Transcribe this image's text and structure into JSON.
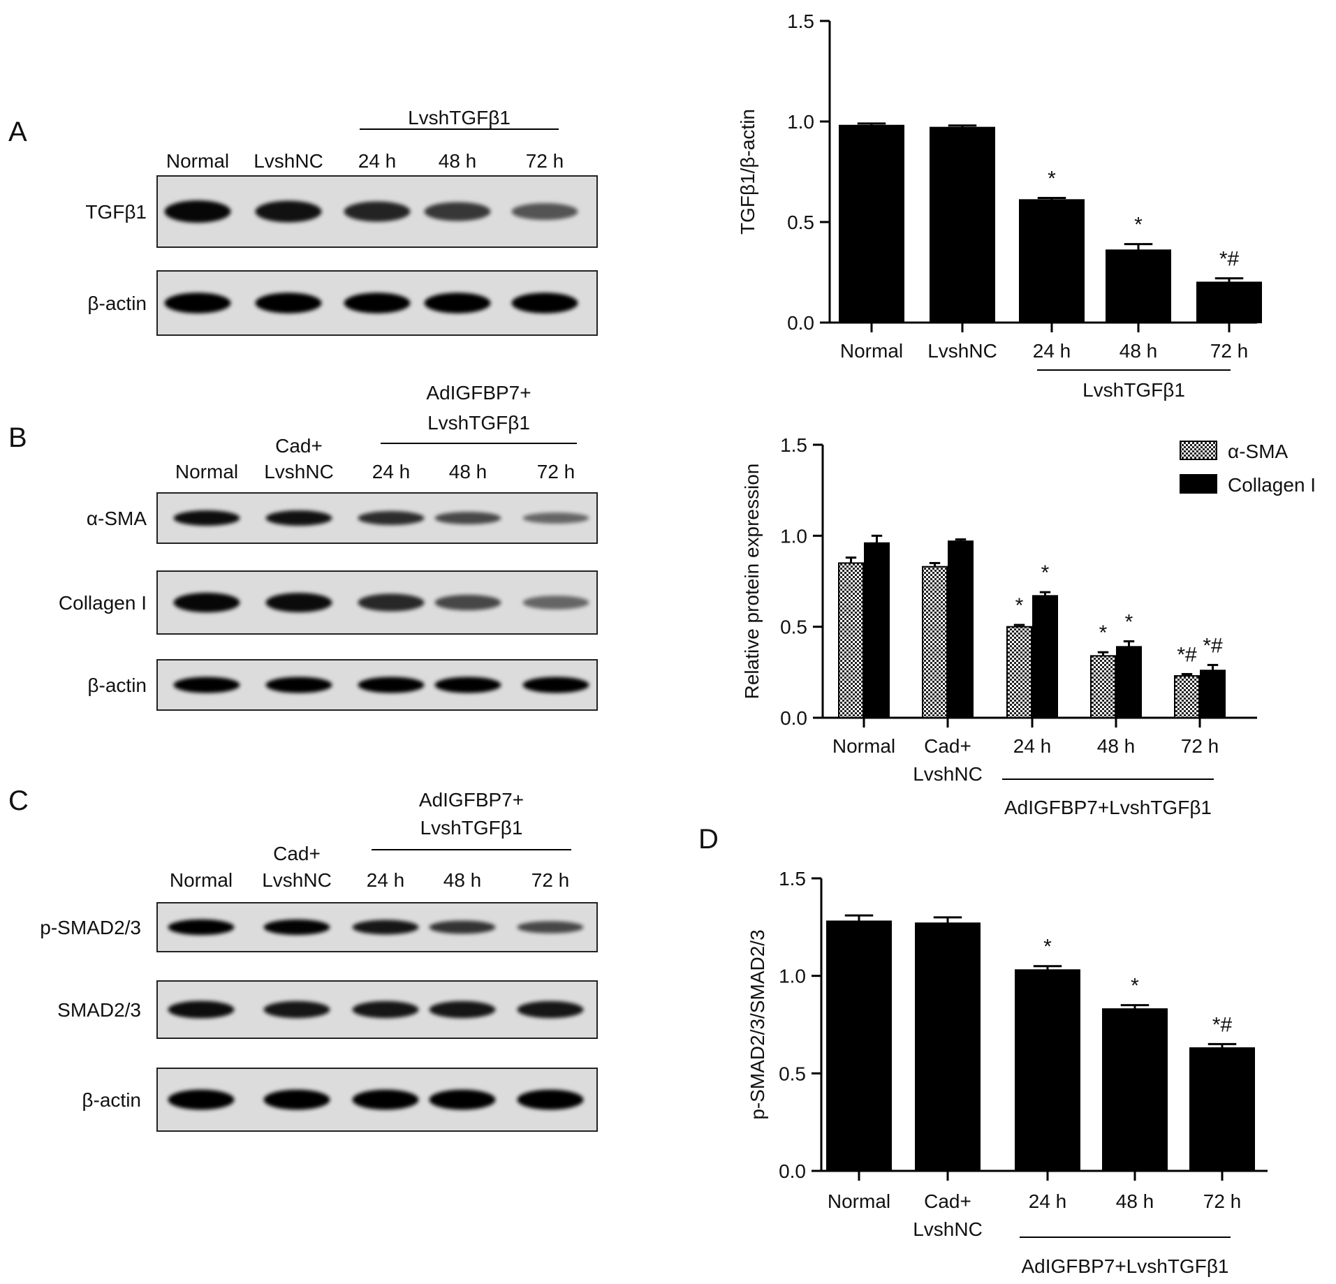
{
  "panel_letters": {
    "A": "A",
    "B": "B",
    "C": "C",
    "D": "D"
  },
  "blots": [
    {
      "panel": "A",
      "group_label": [
        "LvshTGFβ1"
      ],
      "lanes": [
        [
          "Normal"
        ],
        [
          "LvshNC"
        ],
        [
          "24 h"
        ],
        [
          "48 h"
        ],
        [
          "72 h"
        ]
      ],
      "rows": [
        {
          "label": "TGFβ1",
          "intensity": [
            0.95,
            0.88,
            0.75,
            0.62,
            0.42
          ]
        },
        {
          "label": "β-actin",
          "intensity": [
            1,
            1,
            1,
            1,
            1
          ]
        }
      ]
    },
    {
      "panel": "B",
      "group_label": [
        "AdIGFBP7+",
        "LvshTGFβ1"
      ],
      "lanes": [
        [
          "Normal"
        ],
        [
          "Cad+",
          "LvshNC"
        ],
        [
          "24 h"
        ],
        [
          "48 h"
        ],
        [
          "72 h"
        ]
      ],
      "rows": [
        {
          "label": "α-SMA",
          "intensity": [
            0.9,
            0.88,
            0.7,
            0.5,
            0.3
          ]
        },
        {
          "label": "Collagen I",
          "intensity": [
            0.95,
            0.92,
            0.72,
            0.5,
            0.3
          ]
        },
        {
          "label": "β-actin",
          "intensity": [
            1,
            1,
            1,
            1,
            1
          ]
        }
      ]
    },
    {
      "panel": "C",
      "group_label": [
        "AdIGFBP7+",
        "LvshTGFβ1"
      ],
      "lanes": [
        [
          "Normal"
        ],
        [
          "Cad+",
          "LvshNC"
        ],
        [
          "24 h"
        ],
        [
          "48 h"
        ],
        [
          "72 h"
        ]
      ],
      "rows": [
        {
          "label": "p-SMAD2/3",
          "intensity": [
            1,
            0.98,
            0.85,
            0.65,
            0.5
          ]
        },
        {
          "label": "SMAD2/3",
          "intensity": [
            0.9,
            0.85,
            0.85,
            0.85,
            0.85
          ]
        },
        {
          "label": "β-actin",
          "intensity": [
            1,
            1,
            1,
            1,
            1
          ]
        }
      ]
    }
  ],
  "chart_data": [
    {
      "panel": "A",
      "type": "bar",
      "ylabel": "TGFβ1/β-actin",
      "ylim": [
        0,
        1.5
      ],
      "yticks": [
        "0.0",
        "0.5",
        "1.0",
        "1.5"
      ],
      "categories": [
        [
          "Normal"
        ],
        [
          "LvshNC"
        ],
        [
          "24 h"
        ],
        [
          "48 h"
        ],
        [
          "72 h"
        ]
      ],
      "group_label": "LvshTGFβ1",
      "group_span": [
        2,
        4
      ],
      "series": [
        {
          "values": [
            0.98,
            0.97,
            0.61,
            0.36,
            0.2
          ],
          "errors": [
            0.01,
            0.01,
            0.01,
            0.03,
            0.02
          ],
          "color": "#000000",
          "pattern": "solid"
        }
      ],
      "annotations": [
        {
          "category": 2,
          "series": 0,
          "text": "*"
        },
        {
          "category": 3,
          "series": 0,
          "text": "*"
        },
        {
          "category": 4,
          "series": 0,
          "text": "*#"
        }
      ],
      "legend": []
    },
    {
      "panel": "B",
      "type": "bar",
      "ylabel": "Relative protein expression",
      "ylim": [
        0,
        1.5
      ],
      "yticks": [
        "0.0",
        "0.5",
        "1.0",
        "1.5"
      ],
      "categories": [
        [
          "Normal"
        ],
        [
          "Cad+",
          "LvshNC"
        ],
        [
          "24 h"
        ],
        [
          "48 h"
        ],
        [
          "72 h"
        ]
      ],
      "group_label": "AdIGFBP7+LvshTGFβ1",
      "group_span": [
        2,
        4
      ],
      "series": [
        {
          "name": "α-SMA",
          "values": [
            0.85,
            0.83,
            0.5,
            0.34,
            0.23
          ],
          "errors": [
            0.03,
            0.02,
            0.01,
            0.02,
            0.01
          ],
          "color": "#000000",
          "pattern": "checker"
        },
        {
          "name": "Collagen I",
          "values": [
            0.96,
            0.97,
            0.67,
            0.39,
            0.26
          ],
          "errors": [
            0.04,
            0.01,
            0.02,
            0.03,
            0.03
          ],
          "color": "#000000",
          "pattern": "solid"
        }
      ],
      "annotations": [
        {
          "category": 2,
          "series": 0,
          "text": "*"
        },
        {
          "category": 2,
          "series": 1,
          "text": "*"
        },
        {
          "category": 3,
          "series": 0,
          "text": "*"
        },
        {
          "category": 3,
          "series": 1,
          "text": "*"
        },
        {
          "category": 4,
          "series": 0,
          "text": "*#"
        },
        {
          "category": 4,
          "series": 1,
          "text": "*#"
        }
      ],
      "legend": [
        "α-SMA",
        "Collagen I"
      ],
      "legend_position": "top-right"
    },
    {
      "panel": "D",
      "type": "bar",
      "ylabel": "p-SMAD2/3/SMAD2/3",
      "ylim": [
        0,
        1.5
      ],
      "yticks": [
        "0.0",
        "0.5",
        "1.0",
        "1.5"
      ],
      "categories": [
        [
          "Normal"
        ],
        [
          "Cad+",
          "LvshNC"
        ],
        [
          "24 h"
        ],
        [
          "48 h"
        ],
        [
          "72 h"
        ]
      ],
      "group_label": "AdIGFBP7+LvshTGFβ1",
      "group_span": [
        2,
        4
      ],
      "series": [
        {
          "values": [
            1.28,
            1.27,
            1.03,
            0.83,
            0.63
          ],
          "errors": [
            0.03,
            0.03,
            0.02,
            0.02,
            0.02
          ],
          "color": "#000000",
          "pattern": "solid"
        }
      ],
      "annotations": [
        {
          "category": 2,
          "series": 0,
          "text": "*"
        },
        {
          "category": 3,
          "series": 0,
          "text": "*"
        },
        {
          "category": 4,
          "series": 0,
          "text": "*#"
        }
      ],
      "legend": []
    }
  ]
}
